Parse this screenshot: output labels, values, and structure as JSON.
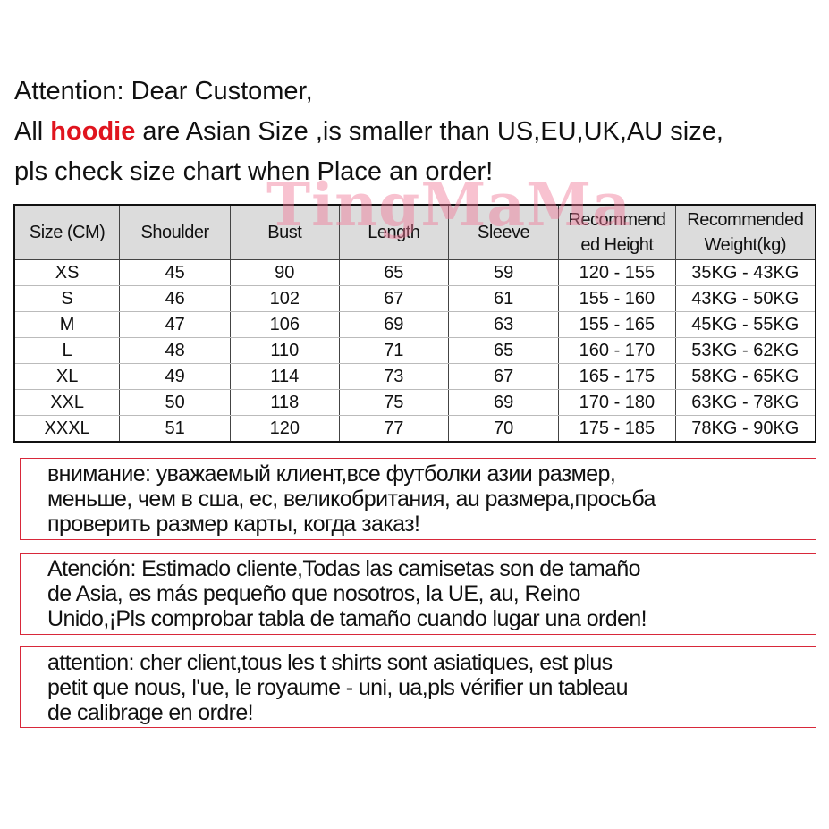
{
  "intro": {
    "line1": "Attention: Dear Customer,",
    "line2_pre": "All ",
    "line2_highlight": "hoodie",
    "line2_post": " are  Asian Size ,is smaller than US,EU,UK,AU size,",
    "line3": "pls check size chart when Place an order!",
    "highlight_color": "#e0141e"
  },
  "watermark": "TingMaMa",
  "table": {
    "headers": [
      "Size (CM)",
      "Shoulder",
      "Bust",
      "Length",
      "Sleeve",
      "Recommend ed Height",
      "Recommended Weight(kg)"
    ],
    "rows": [
      [
        "XS",
        "45",
        "90",
        "65",
        "59",
        "120 - 155",
        "35KG - 43KG"
      ],
      [
        "S",
        "46",
        "102",
        "67",
        "61",
        "155 - 160",
        "43KG - 50KG"
      ],
      [
        "M",
        "47",
        "106",
        "69",
        "63",
        "155 - 165",
        "45KG - 55KG"
      ],
      [
        "L",
        "48",
        "110",
        "71",
        "65",
        "160 - 170",
        "53KG - 62KG"
      ],
      [
        "XL",
        "49",
        "114",
        "73",
        "67",
        "165 - 175",
        "58KG - 65KG"
      ],
      [
        "XXL",
        "50",
        "118",
        "75",
        "69",
        "170 - 180",
        "63KG - 78KG"
      ],
      [
        "XXXL",
        "51",
        "120",
        "77",
        "70",
        "175 - 185",
        "78KG - 90KG"
      ]
    ]
  },
  "notices": [
    [
      "внимание: уважаемый клиент,все футболки азии размер,",
      "меньше, чем в сша, ес, великобритания, au размера,просьба",
      "проверить размер карты, когда заказ!"
    ],
    [
      "Atención: Estimado cliente,Todas las camisetas son de tamaño",
      "de Asia, es más pequeño que nosotros, la UE, au, Reino",
      "Unido,¡Pls comprobar tabla de tamaño cuando lugar una orden!"
    ],
    [
      "attention: cher client,tous les t shirts sont asiatiques, est plus",
      "petit que nous, l'ue, le royaume - uni, ua,pls vérifier un tableau",
      "de calibrage en ordre!"
    ]
  ],
  "colors": {
    "notice_border": "#d8283a",
    "header_bg": "#dcdcdc"
  }
}
